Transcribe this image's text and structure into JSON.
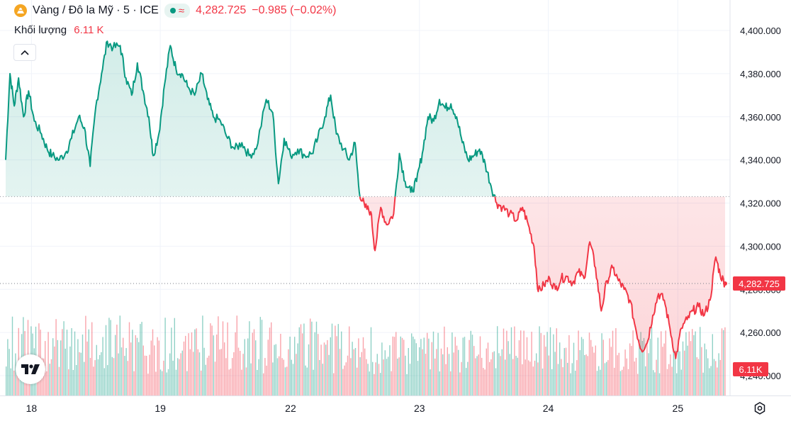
{
  "header": {
    "symbol_title": "Vàng / Đô la Mỹ · 5 · ICE",
    "last_price": "4,282.725",
    "change": "−0.985 (−0.02%)"
  },
  "volume_legend": {
    "label": "Khối lượng",
    "value": "6.11 K"
  },
  "icons": {
    "coin": "gold-coin-icon",
    "collapse": "chevron-up-icon",
    "logo": "tradingview-logo",
    "settings": "settings-icon"
  },
  "colors": {
    "up": "#089981",
    "down": "#f23645",
    "grid": "#f0f3fa"
  },
  "chart_data": {
    "type": "area",
    "baseline": 4323,
    "y_ticks": [
      "4,400.000",
      "4,380.000",
      "4,360.000",
      "4,340.000",
      "4,320.000",
      "4,300.000",
      "4,280.000",
      "4,260.000",
      "4,240.000"
    ],
    "ylim": [
      4233,
      4411
    ],
    "x_ticks": [
      {
        "label": "18",
        "t": 3.6
      },
      {
        "label": "19",
        "t": 21.6
      },
      {
        "label": "22",
        "t": 39.8
      },
      {
        "label": "23",
        "t": 57.8
      },
      {
        "label": "24",
        "t": 75.8
      },
      {
        "label": "25",
        "t": 93.9
      }
    ],
    "xlim": [
      0,
      100.5
    ],
    "price_label": "4,282.725",
    "volume_label": "6.11K",
    "series": [
      {
        "values": [
          [
            0,
            4340
          ],
          [
            0.6,
            4380
          ],
          [
            1.2,
            4365
          ],
          [
            1.8,
            4378
          ],
          [
            2.5,
            4360
          ],
          [
            3.2,
            4372
          ],
          [
            4,
            4358
          ],
          [
            5,
            4352
          ],
          [
            5.8,
            4345
          ],
          [
            6.5,
            4342
          ],
          [
            7.5,
            4340
          ],
          [
            8.5,
            4344
          ],
          [
            9.2,
            4350
          ],
          [
            10.2,
            4360
          ],
          [
            11,
            4355
          ],
          [
            11.8,
            4337
          ],
          [
            12.6,
            4365
          ],
          [
            13.4,
            4380
          ],
          [
            14.2,
            4395
          ],
          [
            15,
            4392
          ],
          [
            16,
            4393
          ],
          [
            16.8,
            4378
          ],
          [
            17.6,
            4370
          ],
          [
            18.4,
            4385
          ],
          [
            19.2,
            4372
          ],
          [
            20,
            4360
          ],
          [
            20.6,
            4342
          ],
          [
            21.4,
            4352
          ],
          [
            22.2,
            4375
          ],
          [
            23,
            4393
          ],
          [
            23.8,
            4382
          ],
          [
            24.6,
            4380
          ],
          [
            25.4,
            4374
          ],
          [
            26.4,
            4370
          ],
          [
            27.4,
            4380
          ],
          [
            28.2,
            4368
          ],
          [
            29,
            4360
          ],
          [
            30,
            4358
          ],
          [
            31,
            4350
          ],
          [
            32,
            4345
          ],
          [
            33,
            4348
          ],
          [
            34,
            4342
          ],
          [
            35,
            4345
          ],
          [
            36.4,
            4368
          ],
          [
            37.3,
            4362
          ],
          [
            38.1,
            4329
          ],
          [
            38.9,
            4350
          ],
          [
            39.8,
            4342
          ],
          [
            40.8,
            4345
          ],
          [
            41.8,
            4342
          ],
          [
            42.8,
            4343
          ],
          [
            43.6,
            4350
          ],
          [
            44.6,
            4360
          ],
          [
            45.4,
            4370
          ],
          [
            46.2,
            4352
          ],
          [
            47.2,
            4345
          ],
          [
            48,
            4340
          ],
          [
            48.8,
            4348
          ],
          [
            49.4,
            4325
          ],
          [
            50.2,
            4318
          ],
          [
            51,
            4316
          ],
          [
            51.6,
            4298
          ],
          [
            52.4,
            4318
          ],
          [
            53.2,
            4310
          ],
          [
            54.2,
            4315
          ],
          [
            55,
            4343
          ],
          [
            55.8,
            4330
          ],
          [
            56.6,
            4325
          ],
          [
            57.4,
            4330
          ],
          [
            58.2,
            4343
          ],
          [
            59,
            4360
          ],
          [
            59.8,
            4358
          ],
          [
            60.6,
            4368
          ],
          [
            61.4,
            4364
          ],
          [
            62.2,
            4366
          ],
          [
            63,
            4360
          ],
          [
            63.8,
            4348
          ],
          [
            64.6,
            4340
          ],
          [
            65.4,
            4342
          ],
          [
            66.2,
            4345
          ],
          [
            67,
            4338
          ],
          [
            67.8,
            4328
          ],
          [
            68.6,
            4320
          ],
          [
            69.4,
            4318
          ],
          [
            70.4,
            4315
          ],
          [
            71.4,
            4312
          ],
          [
            72.2,
            4318
          ],
          [
            73,
            4310
          ],
          [
            73.8,
            4300
          ],
          [
            74.4,
            4279
          ],
          [
            75.2,
            4282
          ],
          [
            76,
            4285
          ],
          [
            76.8,
            4280
          ],
          [
            77.6,
            4285
          ],
          [
            78.4,
            4286
          ],
          [
            79.2,
            4283
          ],
          [
            80,
            4288
          ],
          [
            80.8,
            4285
          ],
          [
            81.6,
            4302
          ],
          [
            82.4,
            4290
          ],
          [
            83.2,
            4270
          ],
          [
            84,
            4284
          ],
          [
            84.8,
            4290
          ],
          [
            85.6,
            4284
          ],
          [
            86.4,
            4280
          ],
          [
            87.2,
            4275
          ],
          [
            88,
            4262
          ],
          [
            88.8,
            4252
          ],
          [
            89.6,
            4255
          ],
          [
            90.4,
            4268
          ],
          [
            91.2,
            4278
          ],
          [
            92,
            4275
          ],
          [
            92.8,
            4262
          ],
          [
            93.6,
            4248
          ],
          [
            94.4,
            4262
          ],
          [
            95.2,
            4266
          ],
          [
            96,
            4270
          ],
          [
            96.8,
            4272
          ],
          [
            97.6,
            4268
          ],
          [
            98.4,
            4275
          ],
          [
            99.2,
            4295
          ],
          [
            99.8,
            4287
          ],
          [
            100.5,
            4282.7
          ]
        ]
      }
    ]
  }
}
